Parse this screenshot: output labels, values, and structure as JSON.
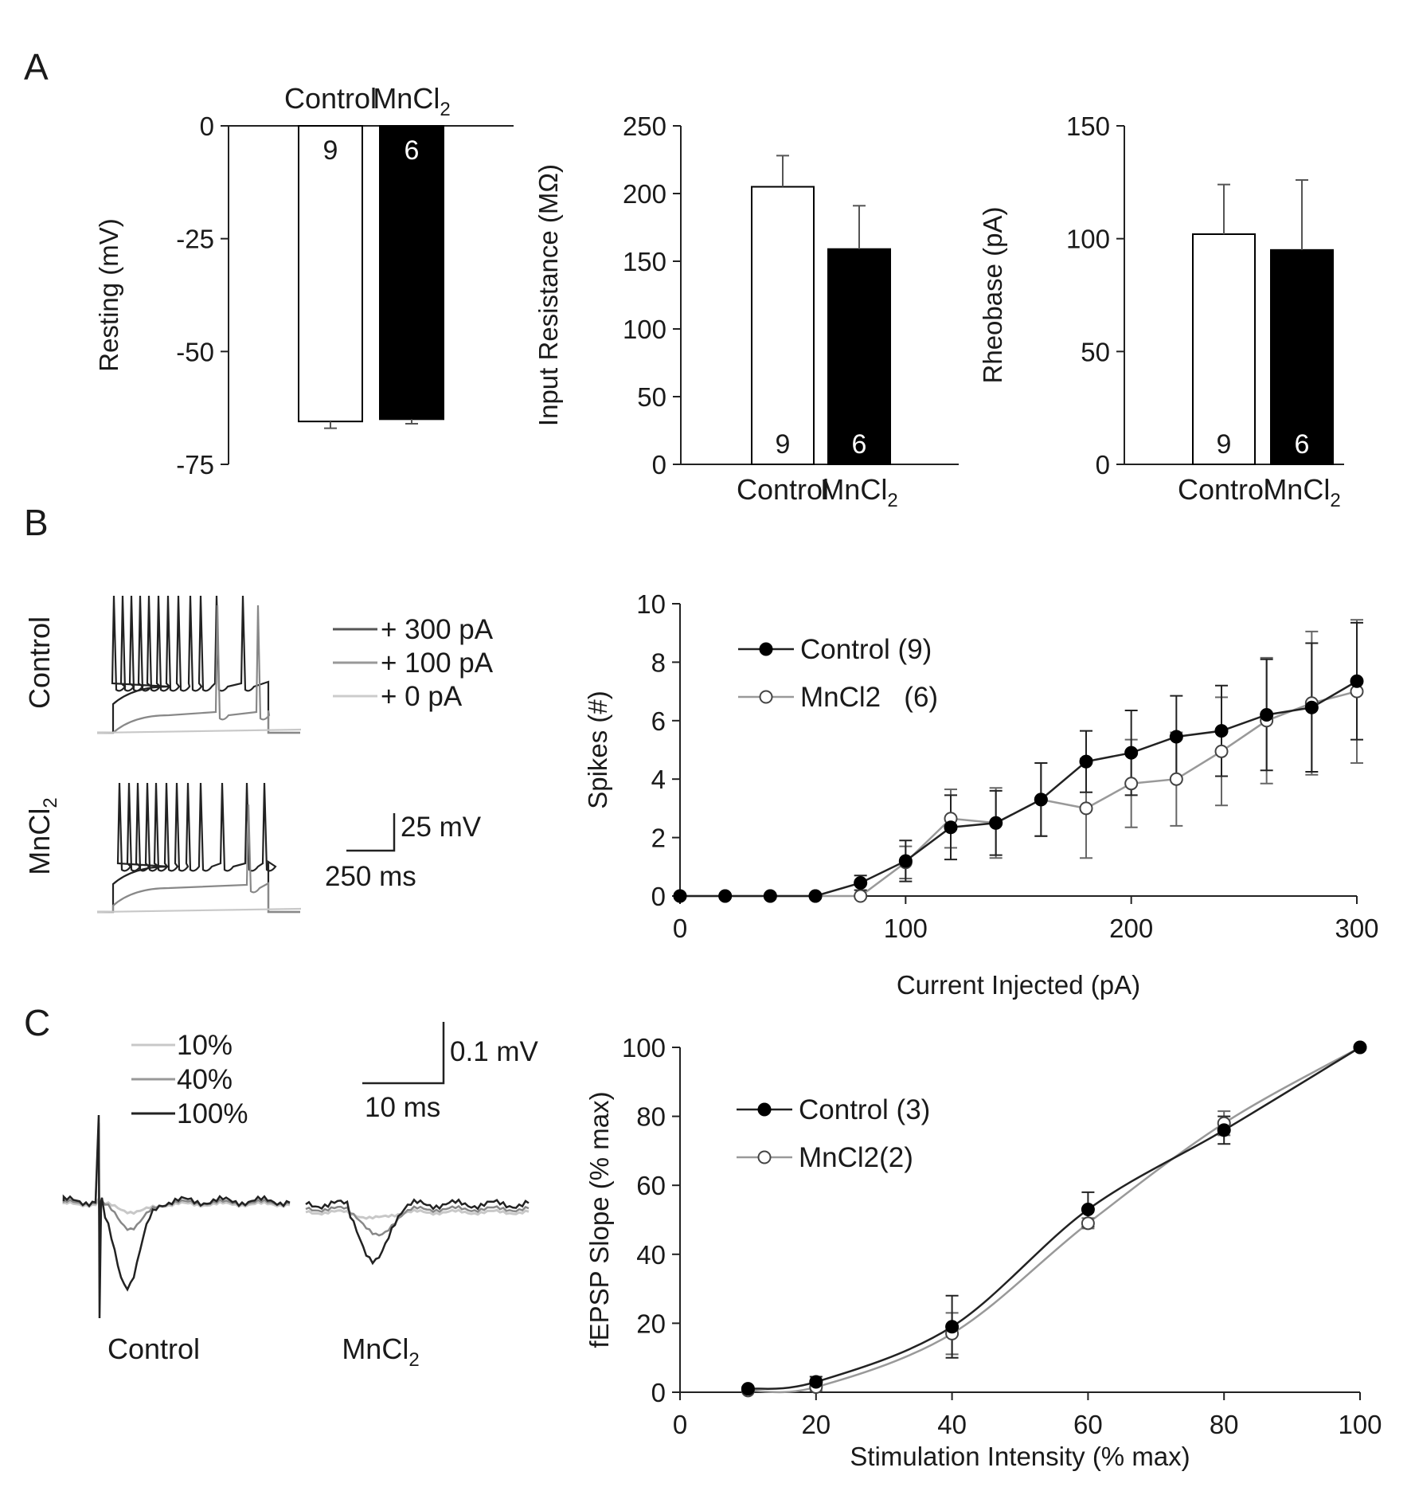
{
  "panels": {
    "A": {
      "letter": "A"
    },
    "B": {
      "letter": "B"
    },
    "C": {
      "letter": "C"
    }
  },
  "chart_data": [
    {
      "id": "A1",
      "type": "bar",
      "ylabel": "Resting (mV)",
      "categories": [
        "Control",
        "MnCl2"
      ],
      "category_labels": [
        {
          "base": "Control",
          "sub": ""
        },
        {
          "base": "MnCl",
          "sub": "2"
        }
      ],
      "values": [
        -65.5,
        -65
      ],
      "errors": [
        1.5,
        1
      ],
      "n": [
        "9",
        "6"
      ],
      "fills": [
        "#ffffff",
        "#000000"
      ],
      "ylim": [
        -75,
        0
      ],
      "yticks": [
        0,
        -25,
        -50,
        -75
      ],
      "category_position": "top"
    },
    {
      "id": "A2",
      "type": "bar",
      "ylabel": "Input Resistance (MΩ)",
      "categories": [
        "Control",
        "MnCl2"
      ],
      "category_labels": [
        {
          "base": "Control",
          "sub": ""
        },
        {
          "base": "MnCl",
          "sub": "2"
        }
      ],
      "values": [
        205,
        159
      ],
      "errors": [
        23,
        32
      ],
      "n": [
        "9",
        "6"
      ],
      "fills": [
        "#ffffff",
        "#000000"
      ],
      "ylim": [
        0,
        250
      ],
      "yticks": [
        0,
        50,
        100,
        150,
        200,
        250
      ],
      "category_position": "bottom"
    },
    {
      "id": "A3",
      "type": "bar",
      "ylabel": "Rheobase (pA)",
      "categories": [
        "Control",
        "MnCl2"
      ],
      "category_labels": [
        {
          "base": "Control",
          "sub": ""
        },
        {
          "base": "MnCl",
          "sub": "2"
        }
      ],
      "values": [
        102,
        95
      ],
      "errors": [
        22,
        31
      ],
      "n": [
        "9",
        "6"
      ],
      "fills": [
        "#ffffff",
        "#000000"
      ],
      "ylim": [
        0,
        150
      ],
      "yticks": [
        0,
        50,
        100,
        150
      ],
      "category_position": "bottom"
    },
    {
      "id": "B_traces",
      "type": "line",
      "description_labels": {
        "row_labels": [
          {
            "base": "Control",
            "sub": ""
          },
          {
            "base": "MnCl",
            "sub": "2"
          }
        ],
        "legend": [
          "+ 300 pA",
          "+ 100 pA",
          "+ 0 pA"
        ],
        "legend_colors": [
          "#555555",
          "#999999",
          "#cccccc"
        ],
        "scalebar": {
          "voltage": "25 mV",
          "time": "250 ms"
        }
      },
      "series": [
        {
          "name": "+ 300 pA",
          "row": "Control",
          "spikes": 12
        },
        {
          "name": "+ 100 pA",
          "row": "Control",
          "spikes": 2
        },
        {
          "name": "+ 0 pA",
          "row": "Control",
          "spikes": 0
        },
        {
          "name": "+ 300 pA",
          "row": "MnCl2",
          "spikes": 12
        },
        {
          "name": "+ 100 pA",
          "row": "MnCl2",
          "spikes": 1
        },
        {
          "name": "+ 0 pA",
          "row": "MnCl2",
          "spikes": 0
        }
      ]
    },
    {
      "id": "B_spikes",
      "type": "line",
      "xlabel": "Current Injected (pA)",
      "ylabel": "Spikes (#)",
      "xlim": [
        0,
        300
      ],
      "ylim": [
        0,
        10
      ],
      "xticks": [
        0,
        100,
        200,
        300
      ],
      "yticks": [
        0,
        2,
        4,
        6,
        8,
        10
      ],
      "x": [
        0,
        20,
        40,
        60,
        80,
        100,
        120,
        140,
        160,
        180,
        200,
        220,
        240,
        260,
        280,
        300
      ],
      "series": [
        {
          "name": "Control (9)",
          "marker": "filled",
          "color": "#000000",
          "values": [
            0,
            0,
            0,
            0,
            0.45,
            1.2,
            2.35,
            2.5,
            3.3,
            4.6,
            4.9,
            5.45,
            5.65,
            6.2,
            6.45,
            7.35
          ],
          "errors": [
            0,
            0,
            0,
            0,
            0.25,
            0.7,
            1.1,
            1.1,
            1.25,
            1.05,
            1.45,
            1.4,
            1.55,
            1.9,
            2.2,
            2.0
          ]
        },
        {
          "name": "MnCl2   (6)",
          "marker": "open",
          "color": "#888888",
          "values": [
            0,
            0,
            0,
            0,
            0,
            1.15,
            2.65,
            2.5,
            3.3,
            3.0,
            3.85,
            4.0,
            4.95,
            6.0,
            6.6,
            7.0
          ],
          "errors": [
            0,
            0,
            0,
            0,
            0,
            0.55,
            1.0,
            1.2,
            1.25,
            1.7,
            1.5,
            1.6,
            1.85,
            2.15,
            2.45,
            2.45
          ]
        }
      ]
    },
    {
      "id": "C_traces",
      "type": "line",
      "description_labels": {
        "legend": [
          "10%",
          "40%",
          "100%"
        ],
        "legend_colors": [
          "#c8c8c8",
          "#999999",
          "#222222"
        ],
        "group_labels": [
          {
            "base": "Control",
            "sub": ""
          },
          {
            "base": "MnCl",
            "sub": "2"
          }
        ],
        "scalebar": {
          "voltage": "0.1 mV",
          "time": "10 ms"
        }
      },
      "series": [
        {
          "name": "10%"
        },
        {
          "name": "40%"
        },
        {
          "name": "100%"
        }
      ]
    },
    {
      "id": "C_fepsp",
      "type": "line",
      "xlabel": "Stimulation Intensity (% max)",
      "ylabel": "fEPSP Slope (% max)",
      "xlim": [
        0,
        100
      ],
      "ylim": [
        0,
        100
      ],
      "xticks": [
        0,
        20,
        40,
        60,
        80,
        100
      ],
      "yticks": [
        0,
        20,
        40,
        60,
        80,
        100
      ],
      "x": [
        10,
        20,
        40,
        60,
        80,
        100
      ],
      "series": [
        {
          "name": "Control (3)",
          "marker": "filled",
          "color": "#000000",
          "values": [
            1,
            3,
            19,
            53,
            76,
            100
          ],
          "errors": [
            0.5,
            1.5,
            9,
            5,
            4,
            0
          ]
        },
        {
          "name": "MnCl2(2)",
          "marker": "open",
          "color": "#888888",
          "values": [
            0.5,
            1.5,
            17,
            49,
            78,
            100
          ],
          "errors": [
            0.5,
            1,
            6,
            1.5,
            3.5,
            0
          ]
        }
      ]
    }
  ]
}
